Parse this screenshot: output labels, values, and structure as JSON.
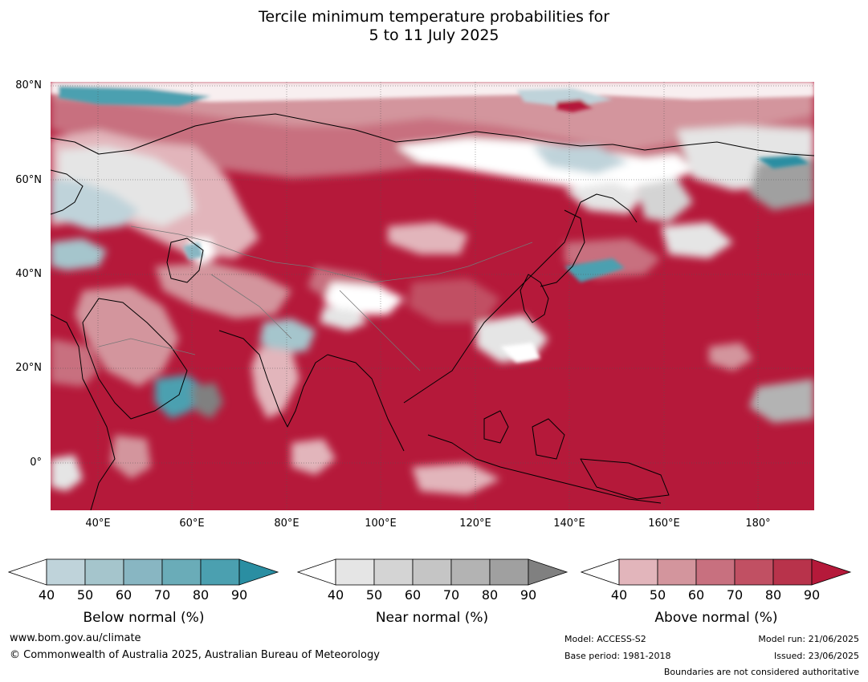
{
  "title": {
    "line1": "Tercile minimum temperature probabilities for",
    "line2": "5 to 11 July 2025"
  },
  "axes": {
    "latitudes": [
      "80°N",
      "60°N",
      "40°N",
      "20°N",
      "0°"
    ],
    "longitudes": [
      "40°E",
      "60°E",
      "80°E",
      "100°E",
      "120°E",
      "140°E",
      "160°E",
      "180°"
    ]
  },
  "legend": {
    "below": {
      "label": "Below normal (%)",
      "ticks": [
        "40",
        "50",
        "60",
        "70",
        "80",
        "90"
      ],
      "colors": [
        "#ffffff",
        "#bfd3da",
        "#a5c5cc",
        "#88b6c2",
        "#6aacb8",
        "#4ba0b0",
        "#2a8ea2"
      ]
    },
    "near": {
      "label": "Near normal (%)",
      "ticks": [
        "40",
        "50",
        "60",
        "70",
        "80",
        "90"
      ],
      "colors": [
        "#ffffff",
        "#e5e5e5",
        "#d4d4d4",
        "#c5c5c5",
        "#b3b3b3",
        "#a0a0a0",
        "#808080"
      ]
    },
    "above": {
      "label": "Above normal (%)",
      "ticks": [
        "40",
        "50",
        "60",
        "70",
        "80",
        "90"
      ],
      "colors": [
        "#ffffff",
        "#e2b5bb",
        "#d3959d",
        "#c8707f",
        "#c15063",
        "#b8334b",
        "#b5193a"
      ]
    }
  },
  "footer": {
    "website": "www.bom.gov.au/climate",
    "copyright": "© Commonwealth of Australia 2025, Australian Bureau of Meteorology",
    "model": "Model: ACCESS-S2",
    "base_period": "Base period: 1981-2018",
    "model_run": "Model run: 21/06/2025",
    "issued": "Issued: 23/06/2025",
    "disclaimer": "Boundaries are not considered authoritative"
  }
}
